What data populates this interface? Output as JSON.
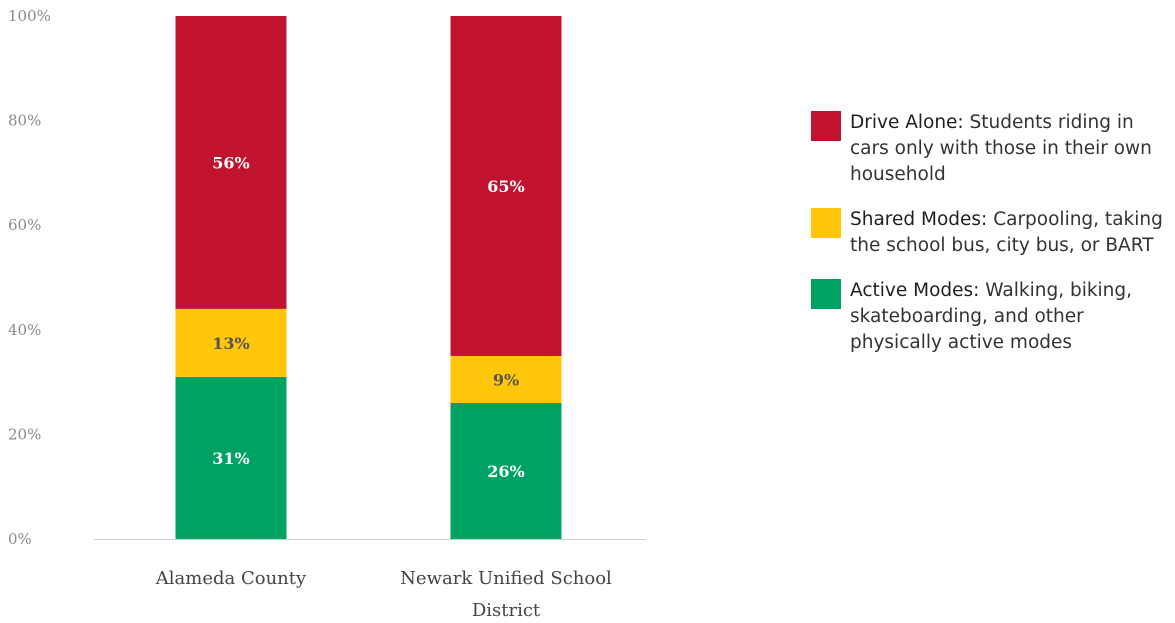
{
  "chart_data": {
    "type": "bar",
    "stacked": true,
    "categories": [
      "Alameda County",
      "Newark Unified School District"
    ],
    "category_lines": [
      [
        "Alameda County"
      ],
      [
        "Newark Unified School",
        "District"
      ]
    ],
    "series": [
      {
        "name": "Active Modes",
        "values": [
          31,
          26
        ],
        "color": "#00a264",
        "label_color": "#ffffff"
      },
      {
        "name": "Shared Modes",
        "values": [
          13,
          9
        ],
        "color": "#ffc60a",
        "label_color": "#555555"
      },
      {
        "name": "Drive Alone",
        "values": [
          56,
          65
        ],
        "color": "#c1132f",
        "label_color": "#ffffff"
      }
    ],
    "ylim": [
      0,
      100
    ],
    "y_ticks": [
      0,
      20,
      40,
      60,
      80,
      100
    ],
    "y_tick_labels": [
      "0%",
      "20%",
      "40%",
      "60%",
      "80%",
      "100%"
    ],
    "grid": false,
    "legend_position": "right"
  },
  "legend": [
    {
      "name": "Drive Alone:",
      "description": "Students riding in cars only with those in their own household",
      "color": "#c1132f"
    },
    {
      "name": "Shared Modes:",
      "description": "Carpooling, taking the school bus, city bus, or BART",
      "color": "#ffc60a"
    },
    {
      "name": "Active Modes:",
      "description": "Walking, biking, skateboarding, and other physically active modes",
      "color": "#00a264"
    }
  ]
}
